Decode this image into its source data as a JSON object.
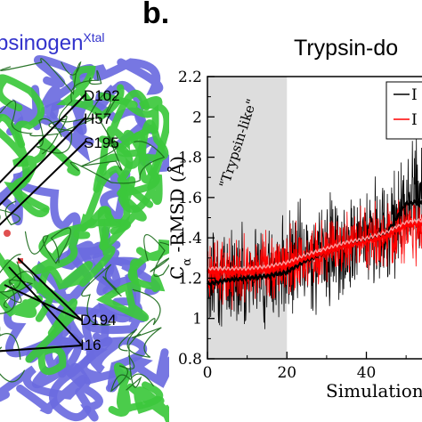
{
  "panel_a": {
    "title_main": "psinogen",
    "title_sup": "Xtal",
    "residue_labels": [
      "D102",
      "H57",
      "S195",
      "D194",
      "I16"
    ],
    "colors": {
      "crystal": "#6b6be0",
      "simulation": "#3cc83c"
    }
  },
  "chart_data": {
    "type": "line",
    "panel_label": "b.",
    "title": "Trypsin-do",
    "xlabel": "Simulation",
    "ylabel": "Cα-RMSD (Å)",
    "ylabel_main": "C",
    "ylabel_sub": "α",
    "ylabel_rest": " -RMSD (Å)",
    "xlim": [
      0,
      54
    ],
    "ylim": [
      0.8,
      2.2
    ],
    "x_ticks": [
      0,
      20,
      40
    ],
    "y_ticks": [
      0.8,
      1,
      1.2,
      1.4,
      1.6,
      1.8,
      2,
      2.2
    ],
    "x_tick_labels": [
      "0",
      "20",
      "40"
    ],
    "y_tick_labels": [
      "0.8",
      "1",
      "1.2",
      "1.4",
      "1.6",
      "1.8",
      "2",
      "2.2"
    ],
    "shaded_region": {
      "x": [
        0,
        20
      ],
      "label": "\"Trypsin-like\"",
      "color": "#dddddd"
    },
    "legend": {
      "position": "top-right",
      "entries": [
        "I",
        "I"
      ]
    },
    "series": [
      {
        "color": "#000000",
        "x": [
          0,
          5,
          10,
          15,
          20,
          25,
          30,
          35,
          40,
          45,
          50,
          54
        ],
        "raw_mean": [
          1.2,
          1.22,
          1.22,
          1.23,
          1.25,
          1.3,
          1.34,
          1.37,
          1.4,
          1.43,
          1.55,
          1.58
        ],
        "raw_amplitude": [
          0.35,
          0.35,
          0.32,
          0.32,
          0.34,
          0.35,
          0.34,
          0.35,
          0.36,
          0.36,
          0.36,
          0.36
        ],
        "average": [
          1.17,
          1.19,
          1.2,
          1.21,
          1.23,
          1.29,
          1.33,
          1.36,
          1.39,
          1.42,
          1.57,
          1.58
        ]
      },
      {
        "color": "#ff0000",
        "x": [
          0,
          5,
          10,
          15,
          20,
          25,
          30,
          35,
          40,
          45,
          50,
          54
        ],
        "raw_mean": [
          1.24,
          1.24,
          1.24,
          1.25,
          1.27,
          1.31,
          1.33,
          1.36,
          1.38,
          1.41,
          1.45,
          1.46
        ],
        "raw_amplitude": [
          0.22,
          0.22,
          0.22,
          0.22,
          0.24,
          0.24,
          0.24,
          0.24,
          0.24,
          0.24,
          0.24,
          0.24
        ],
        "average": [
          1.23,
          1.23,
          1.23,
          1.24,
          1.26,
          1.3,
          1.33,
          1.36,
          1.38,
          1.41,
          1.46,
          1.47
        ]
      }
    ]
  }
}
